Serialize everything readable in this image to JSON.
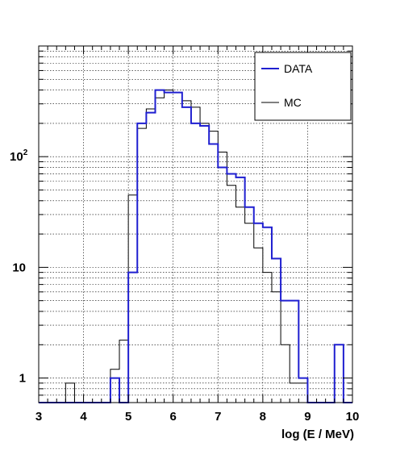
{
  "chart_data": {
    "type": "line",
    "xlabel": "log (E / MeV)",
    "ylabel": "",
    "xlim": [
      3,
      10
    ],
    "ylim": [
      0.6,
      1000
    ],
    "y_scale": "log",
    "grid": true,
    "legend_position": "top-right",
    "x_ticks": [
      "3",
      "4",
      "5",
      "6",
      "7",
      "8",
      "9",
      "10"
    ],
    "y_ticks": [
      {
        "value": 1,
        "label": "1"
      },
      {
        "value": 10,
        "label": "10"
      },
      {
        "value": 100,
        "label": "10",
        "exponent": "2"
      }
    ],
    "bin_edges": [
      3.0,
      3.2,
      3.4,
      3.6,
      3.8,
      4.0,
      4.2,
      4.4,
      4.6,
      4.8,
      5.0,
      5.2,
      5.4,
      5.6,
      5.8,
      6.0,
      6.2,
      6.4,
      6.6,
      6.8,
      7.0,
      7.2,
      7.4,
      7.6,
      7.8,
      8.0,
      8.2,
      8.4,
      8.6,
      8.8,
      9.0,
      9.2,
      9.4,
      9.6,
      9.8,
      10.0
    ],
    "series": [
      {
        "name": "DATA",
        "color": "#1f1fd0",
        "values": [
          0,
          0,
          0,
          0,
          0,
          0,
          0,
          0,
          1,
          0,
          9,
          200,
          250,
          400,
          380,
          380,
          280,
          200,
          190,
          130,
          80,
          70,
          65,
          35,
          25,
          23,
          12,
          5,
          5,
          1,
          0,
          0,
          0,
          2,
          0
        ]
      },
      {
        "name": "MC",
        "color": "#000000",
        "values": [
          0,
          0,
          0,
          0.9,
          0,
          0,
          0,
          0,
          1.2,
          2.2,
          45,
          180,
          270,
          340,
          400,
          380,
          320,
          280,
          200,
          170,
          110,
          55,
          35,
          25,
          15,
          9,
          6,
          2,
          0.9,
          0.9,
          0,
          0,
          0,
          0,
          0
        ]
      }
    ]
  }
}
